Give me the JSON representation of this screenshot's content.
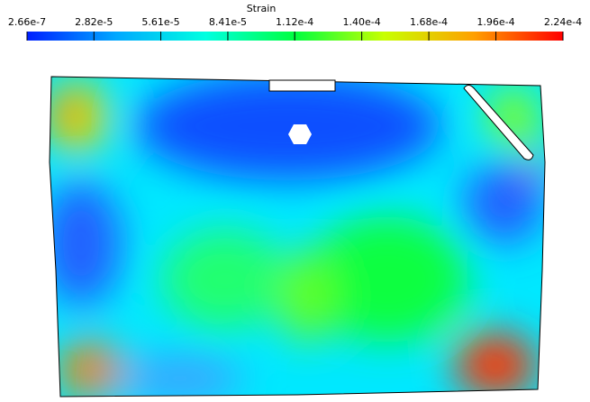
{
  "colorbar": {
    "title": "Strain",
    "lim": [
      2.66e-07,
      0.000224
    ],
    "ticks": [
      {
        "value": 2.66e-07,
        "label": "2.66e-7"
      },
      {
        "value": 2.82e-05,
        "label": "2.82e-5"
      },
      {
        "value": 5.61e-05,
        "label": "5.61e-5"
      },
      {
        "value": 8.41e-05,
        "label": "8.41e-5"
      },
      {
        "value": 0.000112,
        "label": "1.12e-4"
      },
      {
        "value": 0.00014,
        "label": "1.40e-4"
      },
      {
        "value": 0.000168,
        "label": "1.68e-4"
      },
      {
        "value": 0.000196,
        "label": "1.96e-4"
      },
      {
        "value": 0.000224,
        "label": "2.24e-4"
      }
    ],
    "colors": [
      "#0020ff",
      "#00a8ff",
      "#00ffe0",
      "#00ff40",
      "#c8ff00",
      "#ffa000",
      "#ff0000"
    ]
  }
}
